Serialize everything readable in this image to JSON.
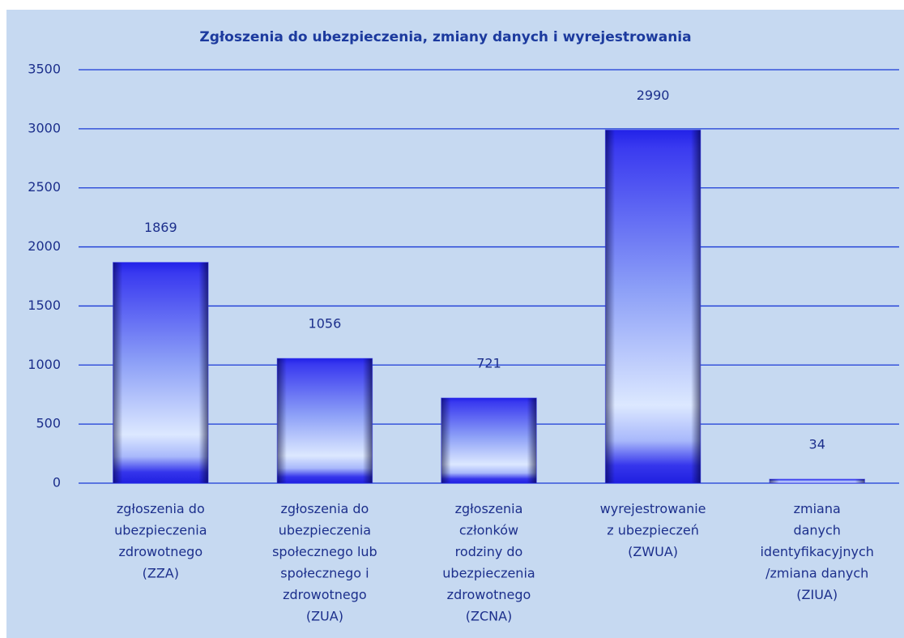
{
  "chart_data": {
    "type": "bar",
    "title": "Zgłoszenia do ubezpieczenia, zmiany danych i  wyrejestrowania",
    "categories": [
      "zgłoszenia do\nubezpieczenia\nzdrowotnego\n(ZZA)",
      "zgłoszenia do\nubezpieczenia\nspołecznego lub\nspołecznego i\nzdrowotnego\n(ZUA)",
      "zgłoszenia\nczłonków\nrodziny do\nubezpieczenia\nzdrowotnego\n(ZCNA)",
      "wyrejestrowanie\nz ubezpieczeń\n(ZWUA)",
      "zmiana\ndanych\nidentyfikacyjnych\n/zmiana danych\n(ZIUA)"
    ],
    "values": [
      1869,
      1056,
      721,
      2990,
      34
    ],
    "color": "#2b2bef",
    "ylim": [
      0,
      3500
    ],
    "yticks": [
      0,
      500,
      1000,
      1500,
      2000,
      2500,
      3000,
      3500
    ],
    "grid": true
  }
}
